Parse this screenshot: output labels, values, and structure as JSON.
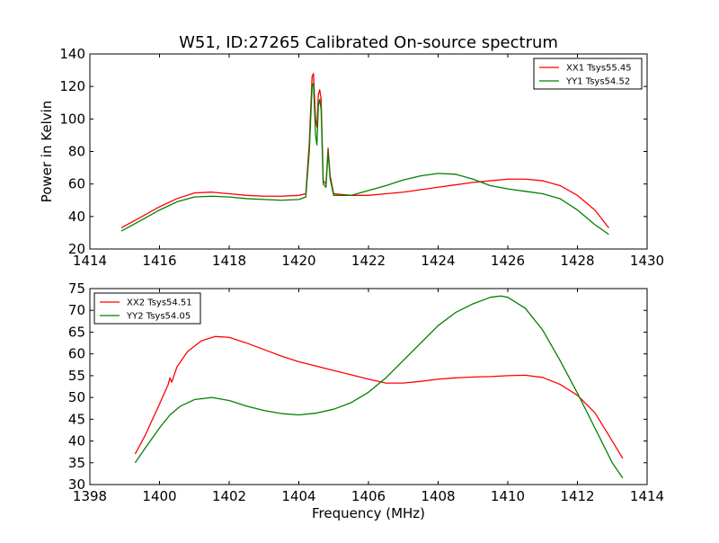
{
  "chart_data": [
    {
      "type": "line",
      "title": "W51, ID:27265 Calibrated On-source spectrum",
      "xlabel": "",
      "ylabel": "Power in Kelvin",
      "xlim": [
        1414,
        1430
      ],
      "ylim": [
        20,
        140
      ],
      "xticks": [
        1414,
        1416,
        1418,
        1420,
        1422,
        1424,
        1426,
        1428,
        1430
      ],
      "yticks": [
        20,
        40,
        60,
        80,
        100,
        120,
        140
      ],
      "legend_position": "top-right",
      "series": [
        {
          "name": "XX1 Tsys55.45",
          "color": "#ff0000",
          "points": [
            [
              1414.9,
              33
            ],
            [
              1415.5,
              40
            ],
            [
              1416.0,
              46
            ],
            [
              1416.5,
              51
            ],
            [
              1417.0,
              54.5
            ],
            [
              1417.5,
              55
            ],
            [
              1418.0,
              54
            ],
            [
              1418.5,
              53
            ],
            [
              1419.0,
              52.5
            ],
            [
              1419.5,
              52.5
            ],
            [
              1420.0,
              53
            ],
            [
              1420.2,
              54
            ],
            [
              1420.3,
              85
            ],
            [
              1420.38,
              126
            ],
            [
              1420.42,
              128
            ],
            [
              1420.48,
              100
            ],
            [
              1420.52,
              95
            ],
            [
              1420.56,
              115
            ],
            [
              1420.6,
              118
            ],
            [
              1420.64,
              112
            ],
            [
              1420.7,
              62
            ],
            [
              1420.78,
              60
            ],
            [
              1420.84,
              82
            ],
            [
              1420.9,
              65
            ],
            [
              1421.0,
              54
            ],
            [
              1421.5,
              53
            ],
            [
              1422.0,
              53
            ],
            [
              1422.5,
              54
            ],
            [
              1423.0,
              55
            ],
            [
              1423.5,
              56.5
            ],
            [
              1424.0,
              58
            ],
            [
              1424.5,
              59.5
            ],
            [
              1425.0,
              61
            ],
            [
              1425.5,
              62
            ],
            [
              1426.0,
              63
            ],
            [
              1426.5,
              63
            ],
            [
              1427.0,
              62
            ],
            [
              1427.5,
              59
            ],
            [
              1428.0,
              53
            ],
            [
              1428.5,
              44
            ],
            [
              1428.9,
              33
            ]
          ]
        },
        {
          "name": "YY1 Tsys54.52",
          "color": "#008000",
          "points": [
            [
              1414.9,
              31
            ],
            [
              1415.5,
              38
            ],
            [
              1416.0,
              44
            ],
            [
              1416.5,
              49
            ],
            [
              1417.0,
              52
            ],
            [
              1417.5,
              52.5
            ],
            [
              1418.0,
              52
            ],
            [
              1418.5,
              51
            ],
            [
              1419.0,
              50.5
            ],
            [
              1419.5,
              50
            ],
            [
              1420.0,
              50.5
            ],
            [
              1420.2,
              52
            ],
            [
              1420.3,
              80
            ],
            [
              1420.38,
              120
            ],
            [
              1420.42,
              122
            ],
            [
              1420.48,
              90
            ],
            [
              1420.52,
              84
            ],
            [
              1420.56,
              108
            ],
            [
              1420.6,
              112
            ],
            [
              1420.64,
              106
            ],
            [
              1420.7,
              60
            ],
            [
              1420.78,
              58
            ],
            [
              1420.84,
              80
            ],
            [
              1420.9,
              63
            ],
            [
              1421.0,
              53
            ],
            [
              1421.5,
              53
            ],
            [
              1422.0,
              56
            ],
            [
              1422.5,
              59
            ],
            [
              1423.0,
              62.5
            ],
            [
              1423.5,
              65
            ],
            [
              1424.0,
              66.5
            ],
            [
              1424.5,
              66
            ],
            [
              1425.0,
              63
            ],
            [
              1425.5,
              59
            ],
            [
              1426.0,
              57
            ],
            [
              1426.5,
              55.5
            ],
            [
              1427.0,
              54
            ],
            [
              1427.5,
              51
            ],
            [
              1428.0,
              44
            ],
            [
              1428.5,
              35
            ],
            [
              1428.9,
              29
            ]
          ]
        }
      ]
    },
    {
      "type": "line",
      "title": "",
      "xlabel": "Frequency (MHz)",
      "ylabel": "",
      "xlim": [
        1398,
        1414
      ],
      "ylim": [
        30,
        75
      ],
      "xticks": [
        1398,
        1400,
        1402,
        1404,
        1406,
        1408,
        1410,
        1412,
        1414
      ],
      "yticks": [
        30,
        35,
        40,
        45,
        50,
        55,
        60,
        65,
        70,
        75
      ],
      "legend_position": "top-left",
      "series": [
        {
          "name": "XX2 Tsys54.51",
          "color": "#ff0000",
          "points": [
            [
              1399.3,
              37
            ],
            [
              1399.6,
              41.5
            ],
            [
              1400.0,
              48.5
            ],
            [
              1400.25,
              53
            ],
            [
              1400.3,
              54.5
            ],
            [
              1400.35,
              53.5
            ],
            [
              1400.5,
              57
            ],
            [
              1400.8,
              60.5
            ],
            [
              1401.2,
              63
            ],
            [
              1401.6,
              64
            ],
            [
              1402.0,
              63.8
            ],
            [
              1402.5,
              62.5
            ],
            [
              1403.0,
              61
            ],
            [
              1403.5,
              59.5
            ],
            [
              1404.0,
              58.2
            ],
            [
              1404.5,
              57.2
            ],
            [
              1405.0,
              56.2
            ],
            [
              1405.5,
              55.2
            ],
            [
              1406.0,
              54.2
            ],
            [
              1406.5,
              53.3
            ],
            [
              1407.0,
              53.3
            ],
            [
              1407.5,
              53.7
            ],
            [
              1408.0,
              54.2
            ],
            [
              1408.5,
              54.5
            ],
            [
              1409.0,
              54.7
            ],
            [
              1409.5,
              54.8
            ],
            [
              1410.0,
              55
            ],
            [
              1410.5,
              55.1
            ],
            [
              1411.0,
              54.6
            ],
            [
              1411.5,
              53
            ],
            [
              1412.0,
              50.5
            ],
            [
              1412.5,
              46.5
            ],
            [
              1413.0,
              40
            ],
            [
              1413.3,
              36
            ]
          ]
        },
        {
          "name": "YY2 Tsys54.05",
          "color": "#008000",
          "points": [
            [
              1399.3,
              35
            ],
            [
              1399.6,
              38.5
            ],
            [
              1400.0,
              43
            ],
            [
              1400.3,
              46
            ],
            [
              1400.6,
              48
            ],
            [
              1401.0,
              49.5
            ],
            [
              1401.5,
              50
            ],
            [
              1402.0,
              49.3
            ],
            [
              1402.5,
              48
            ],
            [
              1403.0,
              47
            ],
            [
              1403.5,
              46.3
            ],
            [
              1404.0,
              46
            ],
            [
              1404.5,
              46.4
            ],
            [
              1405.0,
              47.3
            ],
            [
              1405.5,
              48.8
            ],
            [
              1406.0,
              51.2
            ],
            [
              1406.5,
              54.5
            ],
            [
              1407.0,
              58.5
            ],
            [
              1407.5,
              62.5
            ],
            [
              1408.0,
              66.5
            ],
            [
              1408.5,
              69.5
            ],
            [
              1409.0,
              71.5
            ],
            [
              1409.5,
              73
            ],
            [
              1409.8,
              73.3
            ],
            [
              1410.0,
              73
            ],
            [
              1410.5,
              70.5
            ],
            [
              1411.0,
              65.5
            ],
            [
              1411.5,
              58.5
            ],
            [
              1412.0,
              51
            ],
            [
              1412.5,
              43
            ],
            [
              1413.0,
              35
            ],
            [
              1413.3,
              31.5
            ]
          ]
        }
      ]
    }
  ]
}
